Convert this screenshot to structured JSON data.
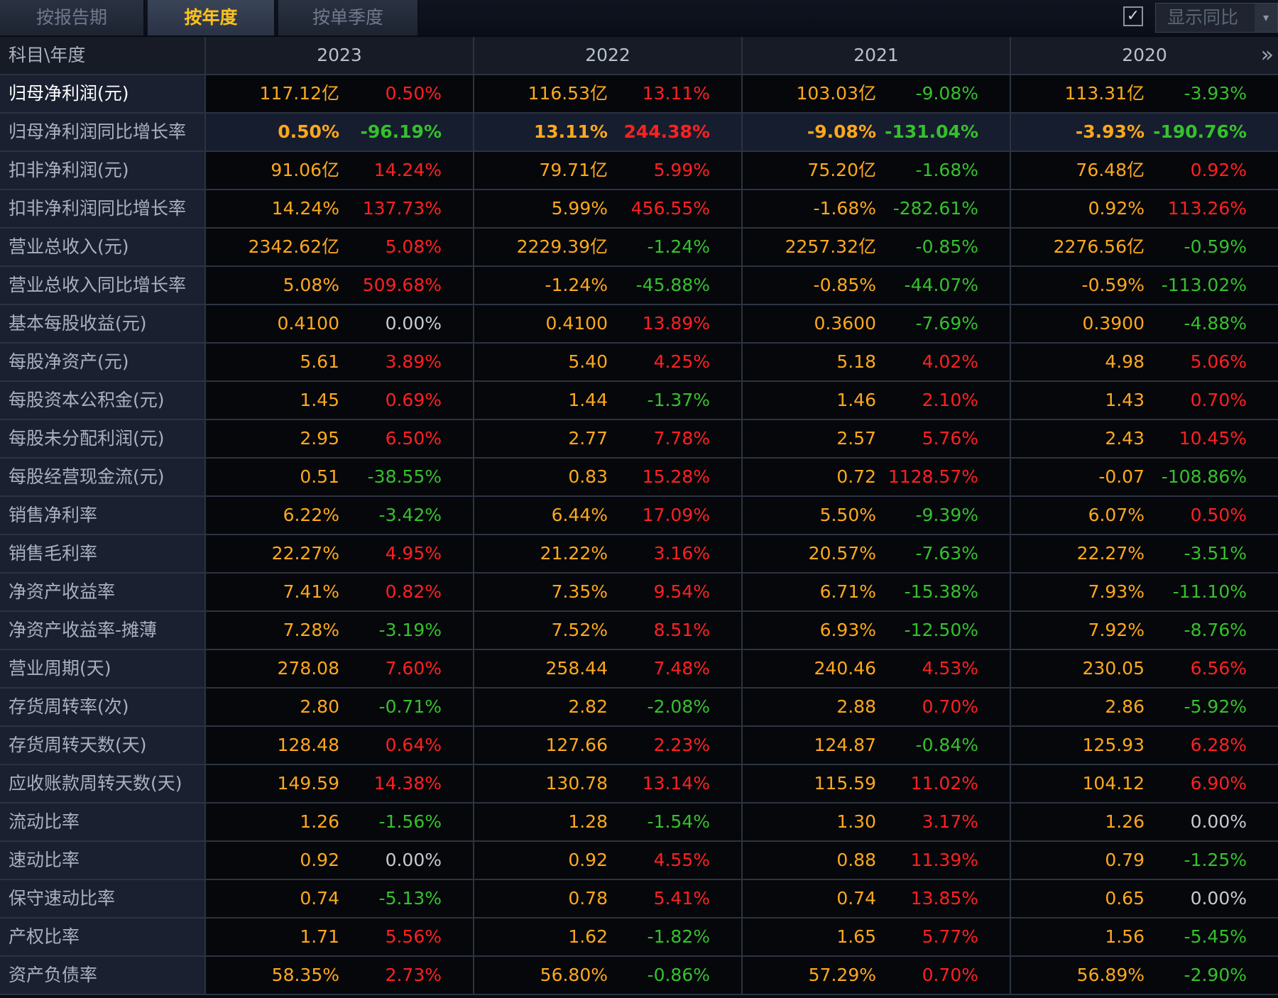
{
  "tabs": [
    "按报告期",
    "按年度",
    "按单季度"
  ],
  "active_tab": 1,
  "show_yoy": {
    "checked": true,
    "check_glyph": "✓",
    "label": "显示同比",
    "arrow_glyph": "▾"
  },
  "table": {
    "corner_label": "科目\\年度",
    "years": [
      "2023",
      "2022",
      "2021",
      "2020"
    ],
    "more_glyph": "»",
    "rows": [
      {
        "label": "归母净利润(元)",
        "cells": [
          [
            "117.12亿",
            "0.50%"
          ],
          [
            "116.53亿",
            "13.11%"
          ],
          [
            "103.03亿",
            "-9.08%"
          ],
          [
            "113.31亿",
            "-3.93%"
          ]
        ]
      },
      {
        "label": "归母净利润同比增长率",
        "cells": [
          [
            "0.50%",
            "-96.19%"
          ],
          [
            "13.11%",
            "244.38%"
          ],
          [
            "-9.08%",
            "-131.04%"
          ],
          [
            "-3.93%",
            "-190.76%"
          ]
        ]
      },
      {
        "label": "扣非净利润(元)",
        "cells": [
          [
            "91.06亿",
            "14.24%"
          ],
          [
            "79.71亿",
            "5.99%"
          ],
          [
            "75.20亿",
            "-1.68%"
          ],
          [
            "76.48亿",
            "0.92%"
          ]
        ]
      },
      {
        "label": "扣非净利润同比增长率",
        "cells": [
          [
            "14.24%",
            "137.73%"
          ],
          [
            "5.99%",
            "456.55%"
          ],
          [
            "-1.68%",
            "-282.61%"
          ],
          [
            "0.92%",
            "113.26%"
          ]
        ]
      },
      {
        "label": "营业总收入(元)",
        "cells": [
          [
            "2342.62亿",
            "5.08%"
          ],
          [
            "2229.39亿",
            "-1.24%"
          ],
          [
            "2257.32亿",
            "-0.85%"
          ],
          [
            "2276.56亿",
            "-0.59%"
          ]
        ]
      },
      {
        "label": "营业总收入同比增长率",
        "cells": [
          [
            "5.08%",
            "509.68%"
          ],
          [
            "-1.24%",
            "-45.88%"
          ],
          [
            "-0.85%",
            "-44.07%"
          ],
          [
            "-0.59%",
            "-113.02%"
          ]
        ]
      },
      {
        "label": "基本每股收益(元)",
        "cells": [
          [
            "0.4100",
            "0.00%"
          ],
          [
            "0.4100",
            "13.89%"
          ],
          [
            "0.3600",
            "-7.69%"
          ],
          [
            "0.3900",
            "-4.88%"
          ]
        ]
      },
      {
        "label": "每股净资产(元)",
        "cells": [
          [
            "5.61",
            "3.89%"
          ],
          [
            "5.40",
            "4.25%"
          ],
          [
            "5.18",
            "4.02%"
          ],
          [
            "4.98",
            "5.06%"
          ]
        ]
      },
      {
        "label": "每股资本公积金(元)",
        "cells": [
          [
            "1.45",
            "0.69%"
          ],
          [
            "1.44",
            "-1.37%"
          ],
          [
            "1.46",
            "2.10%"
          ],
          [
            "1.43",
            "0.70%"
          ]
        ]
      },
      {
        "label": "每股未分配利润(元)",
        "cells": [
          [
            "2.95",
            "6.50%"
          ],
          [
            "2.77",
            "7.78%"
          ],
          [
            "2.57",
            "5.76%"
          ],
          [
            "2.43",
            "10.45%"
          ]
        ]
      },
      {
        "label": "每股经营现金流(元)",
        "cells": [
          [
            "0.51",
            "-38.55%"
          ],
          [
            "0.83",
            "15.28%"
          ],
          [
            "0.72",
            "1128.57%"
          ],
          [
            "-0.07",
            "-108.86%"
          ]
        ]
      },
      {
        "label": "销售净利率",
        "cells": [
          [
            "6.22%",
            "-3.42%"
          ],
          [
            "6.44%",
            "17.09%"
          ],
          [
            "5.50%",
            "-9.39%"
          ],
          [
            "6.07%",
            "0.50%"
          ]
        ]
      },
      {
        "label": "销售毛利率",
        "cells": [
          [
            "22.27%",
            "4.95%"
          ],
          [
            "21.22%",
            "3.16%"
          ],
          [
            "20.57%",
            "-7.63%"
          ],
          [
            "22.27%",
            "-3.51%"
          ]
        ]
      },
      {
        "label": "净资产收益率",
        "cells": [
          [
            "7.41%",
            "0.82%"
          ],
          [
            "7.35%",
            "9.54%"
          ],
          [
            "6.71%",
            "-15.38%"
          ],
          [
            "7.93%",
            "-11.10%"
          ]
        ]
      },
      {
        "label": "净资产收益率-摊薄",
        "cells": [
          [
            "7.28%",
            "-3.19%"
          ],
          [
            "7.52%",
            "8.51%"
          ],
          [
            "6.93%",
            "-12.50%"
          ],
          [
            "7.92%",
            "-8.76%"
          ]
        ]
      },
      {
        "label": "营业周期(天)",
        "cells": [
          [
            "278.08",
            "7.60%"
          ],
          [
            "258.44",
            "7.48%"
          ],
          [
            "240.46",
            "4.53%"
          ],
          [
            "230.05",
            "6.56%"
          ]
        ]
      },
      {
        "label": "存货周转率(次)",
        "cells": [
          [
            "2.80",
            "-0.71%"
          ],
          [
            "2.82",
            "-2.08%"
          ],
          [
            "2.88",
            "0.70%"
          ],
          [
            "2.86",
            "-5.92%"
          ]
        ]
      },
      {
        "label": "存货周转天数(天)",
        "cells": [
          [
            "128.48",
            "0.64%"
          ],
          [
            "127.66",
            "2.23%"
          ],
          [
            "124.87",
            "-0.84%"
          ],
          [
            "125.93",
            "6.28%"
          ]
        ]
      },
      {
        "label": "应收账款周转天数(天)",
        "cells": [
          [
            "149.59",
            "14.38%"
          ],
          [
            "130.78",
            "13.14%"
          ],
          [
            "115.59",
            "11.02%"
          ],
          [
            "104.12",
            "6.90%"
          ]
        ]
      },
      {
        "label": "流动比率",
        "cells": [
          [
            "1.26",
            "-1.56%"
          ],
          [
            "1.28",
            "-1.54%"
          ],
          [
            "1.30",
            "3.17%"
          ],
          [
            "1.26",
            "0.00%"
          ]
        ]
      },
      {
        "label": "速动比率",
        "cells": [
          [
            "0.92",
            "0.00%"
          ],
          [
            "0.92",
            "4.55%"
          ],
          [
            "0.88",
            "11.39%"
          ],
          [
            "0.79",
            "-1.25%"
          ]
        ]
      },
      {
        "label": "保守速动比率",
        "cells": [
          [
            "0.74",
            "-5.13%"
          ],
          [
            "0.78",
            "5.41%"
          ],
          [
            "0.74",
            "13.85%"
          ],
          [
            "0.65",
            "0.00%"
          ]
        ]
      },
      {
        "label": "产权比率",
        "cells": [
          [
            "1.71",
            "5.56%"
          ],
          [
            "1.62",
            "-1.82%"
          ],
          [
            "1.65",
            "5.77%"
          ],
          [
            "1.56",
            "-5.45%"
          ]
        ]
      },
      {
        "label": "资产负债率",
        "cells": [
          [
            "58.35%",
            "2.73%"
          ],
          [
            "56.80%",
            "-0.86%"
          ],
          [
            "57.29%",
            "0.70%"
          ],
          [
            "56.89%",
            "-2.90%"
          ]
        ]
      }
    ]
  },
  "colors": {
    "value": "#ffa81c",
    "increase": "#ff2020",
    "decrease": "#35c12c",
    "zero": "#c6cad2",
    "active_tab": "#ffc21a"
  }
}
